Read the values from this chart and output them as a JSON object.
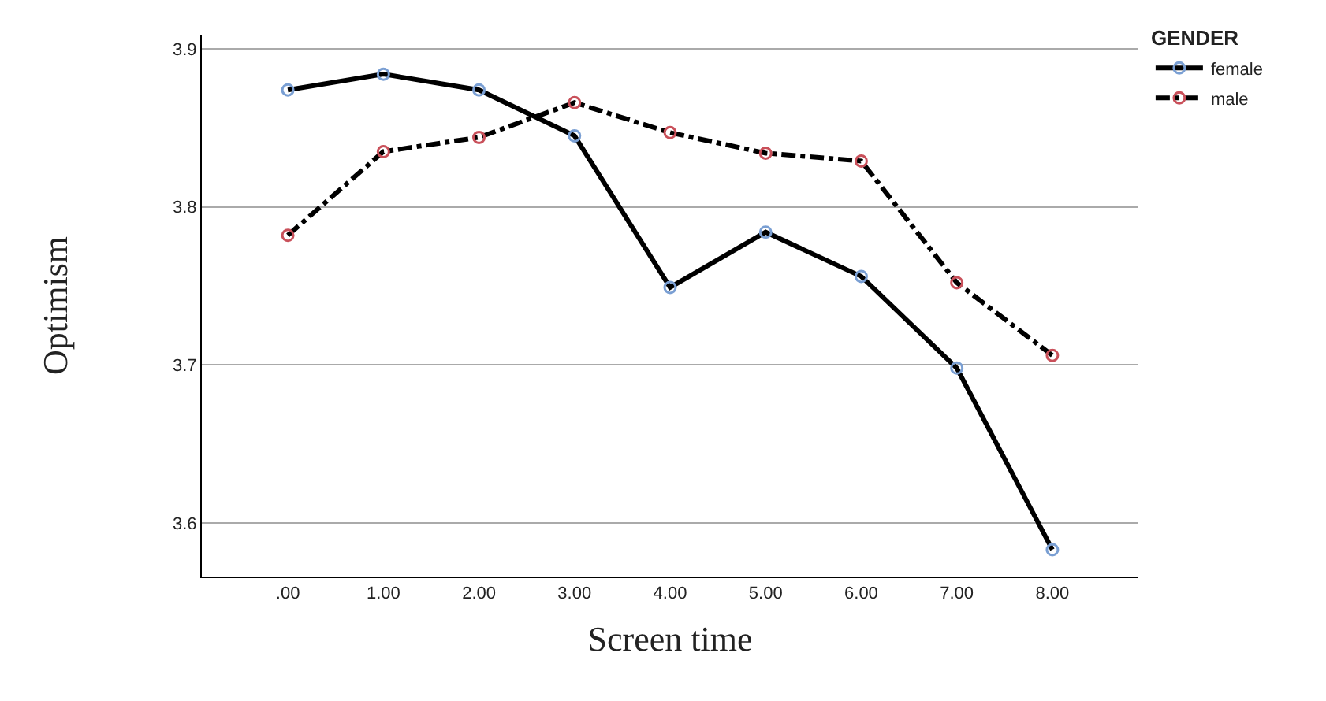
{
  "chart_data": {
    "type": "line",
    "xlabel": "Screen time",
    "ylabel": "Optimism",
    "legend_title": "GENDER",
    "categories": [
      ".00",
      "1.00",
      "2.00",
      "3.00",
      "4.00",
      "5.00",
      "6.00",
      "7.00",
      "8.00"
    ],
    "series": [
      {
        "name": "female",
        "color": "#000000",
        "line_style": "solid",
        "marker": "circle",
        "colors": [
          "#7a9fd3",
          "#7a9fd3",
          "#7a9fd3",
          "#7a9fd3",
          "#7a9fd3",
          "#7a9fd3",
          "#7a9fd3",
          "#7a9fd3",
          "#7a9fd3"
        ],
        "values": [
          3.874,
          3.884,
          3.874,
          3.845,
          3.749,
          3.784,
          3.756,
          3.698,
          3.583
        ]
      },
      {
        "name": "male",
        "color": "#000000",
        "line_style": "dashdot",
        "marker": "circle",
        "colors": [
          "#c9505a",
          "#c9505a",
          "#c9505a",
          "#c9505a",
          "#c9505a",
          "#c9505a",
          "#c9505a",
          "#c9505a",
          "#c9505a"
        ],
        "values": [
          3.782,
          3.835,
          3.844,
          3.866,
          3.847,
          3.834,
          3.829,
          3.752,
          3.706
        ]
      }
    ],
    "ylim": [
      3.566,
      3.909
    ],
    "yticks": [
      3.6,
      3.7,
      3.8,
      3.9
    ],
    "grid": "y",
    "legend": "top right"
  }
}
